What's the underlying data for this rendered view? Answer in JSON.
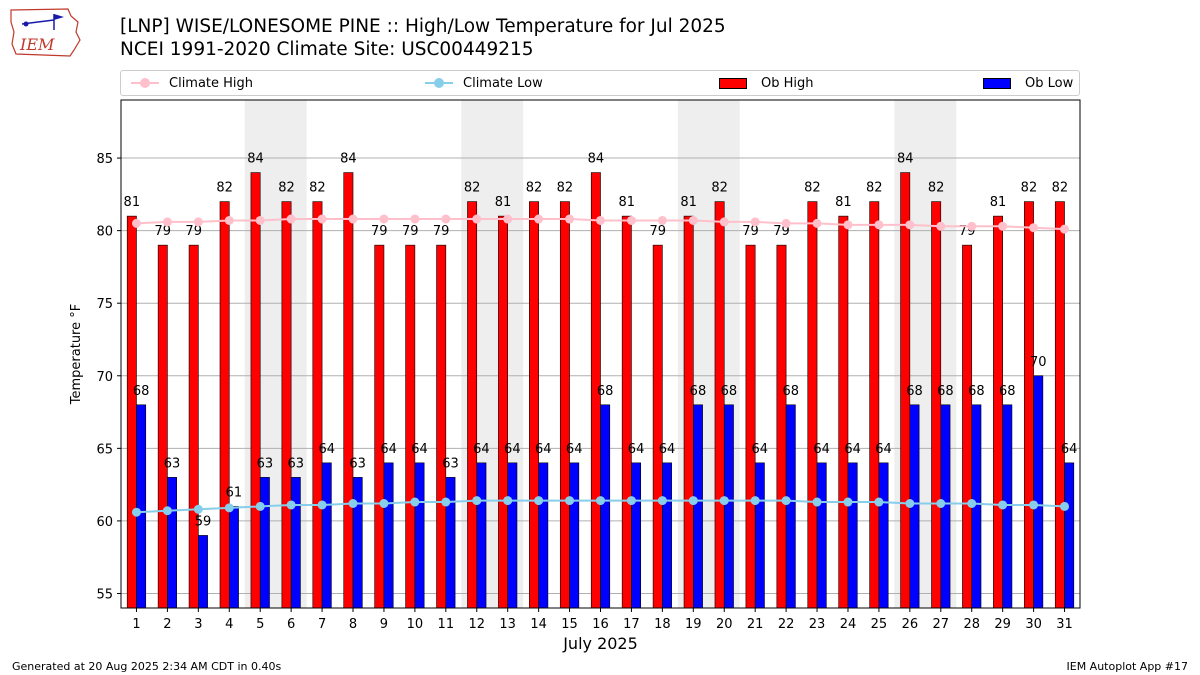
{
  "header": {
    "logo_text": "IEM",
    "title_line1": "[LNP] WISE/LONESOME PINE :: High/Low Temperature for Jul 2025",
    "title_line2": "NCEI 1991-2020 Climate Site: USC00449215"
  },
  "legend": {
    "climate_high": "Climate High",
    "climate_low": "Climate Low",
    "ob_high": "Ob High",
    "ob_low": "Ob Low"
  },
  "colors": {
    "ob_high": "#ff0000",
    "ob_low": "#0000ff",
    "climate_high": "#ffc0cb",
    "climate_low": "#87ceeb",
    "weekend_shade": "#eeeeee",
    "grid": "#b0b0b0"
  },
  "footer": {
    "left": "Generated at 20 Aug 2025 2:34 AM CDT in 0.40s",
    "right": "IEM Autoplot App #17"
  },
  "chart_data": {
    "type": "bar",
    "xlabel": "July 2025",
    "ylabel": "Temperature °F",
    "ylim": [
      54,
      89
    ],
    "yticks": [
      55,
      60,
      65,
      70,
      75,
      80,
      85
    ],
    "grid": "horizontal",
    "legend_position": "top",
    "shaded_days": [
      [
        5,
        6
      ],
      [
        12,
        13
      ],
      [
        19,
        20
      ],
      [
        26,
        27
      ]
    ],
    "days": [
      1,
      2,
      3,
      4,
      5,
      6,
      7,
      8,
      9,
      10,
      11,
      12,
      13,
      14,
      15,
      16,
      17,
      18,
      19,
      20,
      21,
      22,
      23,
      24,
      25,
      26,
      27,
      28,
      29,
      30,
      31
    ],
    "series": [
      {
        "name": "Ob High",
        "kind": "bar",
        "values": [
          81,
          79,
          79,
          82,
          84,
          82,
          82,
          84,
          79,
          79,
          79,
          82,
          81,
          82,
          82,
          84,
          81,
          79,
          81,
          82,
          79,
          79,
          82,
          81,
          82,
          84,
          82,
          79,
          81,
          82,
          82
        ]
      },
      {
        "name": "Ob Low",
        "kind": "bar",
        "values": [
          68,
          63,
          59,
          61,
          63,
          63,
          64,
          63,
          64,
          64,
          63,
          64,
          64,
          64,
          64,
          68,
          64,
          64,
          68,
          68,
          64,
          68,
          64,
          64,
          64,
          68,
          68,
          68,
          68,
          70,
          64
        ]
      },
      {
        "name": "Climate High",
        "kind": "line",
        "values": [
          80.5,
          80.6,
          80.6,
          80.7,
          80.7,
          80.8,
          80.8,
          80.8,
          80.8,
          80.8,
          80.8,
          80.8,
          80.8,
          80.8,
          80.8,
          80.7,
          80.7,
          80.7,
          80.7,
          80.6,
          80.6,
          80.5,
          80.5,
          80.4,
          80.4,
          80.4,
          80.3,
          80.3,
          80.3,
          80.2,
          80.1
        ]
      },
      {
        "name": "Climate Low",
        "kind": "line",
        "values": [
          60.6,
          60.7,
          60.8,
          60.9,
          61.0,
          61.1,
          61.1,
          61.2,
          61.2,
          61.3,
          61.3,
          61.4,
          61.4,
          61.4,
          61.4,
          61.4,
          61.4,
          61.4,
          61.4,
          61.4,
          61.4,
          61.4,
          61.3,
          61.3,
          61.3,
          61.2,
          61.2,
          61.2,
          61.1,
          61.1,
          61.0
        ]
      }
    ]
  }
}
